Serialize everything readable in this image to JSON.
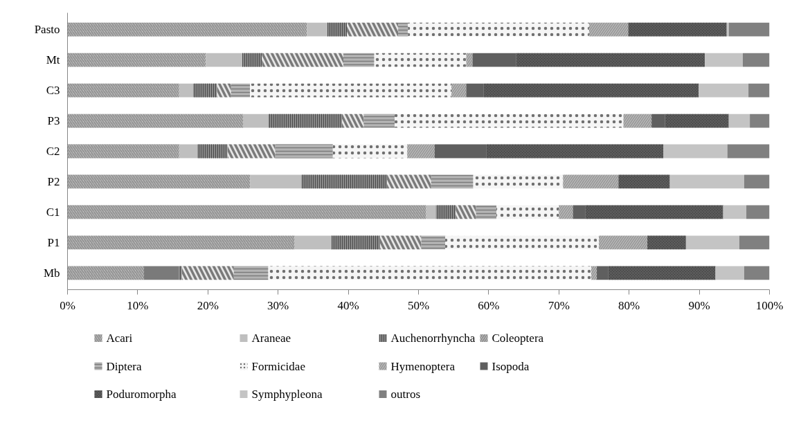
{
  "chart_data": {
    "type": "bar",
    "orientation": "horizontal",
    "stacked": true,
    "legend": "bottom",
    "categories": [
      "Pasto",
      "Mt",
      "C3",
      "P3",
      "C2",
      "P2",
      "C1",
      "P1",
      "Mb"
    ],
    "xlim": [
      0,
      100
    ],
    "xticks": [
      {
        "value": 0,
        "label": "0%"
      },
      {
        "value": 10,
        "label": "10%"
      },
      {
        "value": 20,
        "label": "20%"
      },
      {
        "value": 30,
        "label": "30%"
      },
      {
        "value": 40,
        "label": "40%"
      },
      {
        "value": 50,
        "label": "50%"
      },
      {
        "value": 60,
        "label": "60%"
      },
      {
        "value": 70,
        "label": "70%"
      },
      {
        "value": 80,
        "label": "80%"
      },
      {
        "value": 90,
        "label": "90%"
      },
      {
        "value": 100,
        "label": "100%"
      }
    ],
    "series": [
      {
        "name": "Acari",
        "color": "#c8c8c8",
        "values": [
          34.1,
          19.7,
          15.9,
          25.0,
          15.9,
          26.0,
          51.1,
          32.3,
          10.9
        ]
      },
      {
        "name": "Araneae",
        "color": "#bfbfbf",
        "colors": [
          "#bfbfbf",
          "#bfbfbf",
          "#bfbfbf",
          "#bfbfbf",
          "#bfbfbf",
          "#bfbfbf",
          "#bfbfbf",
          "#bfbfbf",
          "#7a7a7a"
        ],
        "values": [
          2.9,
          5.2,
          2.0,
          3.6,
          2.6,
          7.3,
          1.4,
          5.3,
          5.0
        ]
      },
      {
        "name": "Auchenorrhyncha",
        "color": "#8c8c8c",
        "values": [
          2.8,
          2.8,
          3.4,
          10.5,
          4.3,
          12.2,
          2.8,
          6.9,
          0.4
        ]
      },
      {
        "name": "Coleoptera",
        "color": "#e6e6e6",
        "values": [
          7.3,
          11.6,
          2.0,
          3.1,
          6.8,
          6.3,
          2.9,
          5.9,
          7.4
        ]
      },
      {
        "name": "Diptera",
        "color": "#b4b4b4",
        "values": [
          1.4,
          4.4,
          2.7,
          4.4,
          8.2,
          6.0,
          2.9,
          3.4,
          4.9
        ]
      },
      {
        "name": "Formicidae",
        "color": "#f5f5f5",
        "values": [
          25.8,
          13.1,
          28.7,
          32.6,
          10.6,
          12.8,
          8.9,
          21.9,
          46.0
        ]
      },
      {
        "name": "Hymenoptera",
        "color": "#d2d2d2",
        "values": [
          5.6,
          0.9,
          2.1,
          4.0,
          3.9,
          7.9,
          2.0,
          6.9,
          0.8
        ]
      },
      {
        "name": "Isopoda",
        "color": "#5f5f5f",
        "values": [
          0,
          6.2,
          2.5,
          1.9,
          7.4,
          0,
          1.8,
          0,
          1.6
        ]
      },
      {
        "name": "Poduromorpha",
        "color": "#4a4a4a",
        "values": [
          14.0,
          26.9,
          30.6,
          9.1,
          25.2,
          7.3,
          19.6,
          5.5,
          15.3
        ]
      },
      {
        "name": "Symphypleona",
        "color": "#c4c4c4",
        "values": [
          0.3,
          5.4,
          7.1,
          3.0,
          9.1,
          10.6,
          3.3,
          7.6,
          4.1
        ]
      },
      {
        "name": "outros",
        "color": "#808080",
        "values": [
          5.8,
          3.8,
          3.0,
          2.8,
          6.0,
          3.6,
          3.3,
          4.3,
          3.6
        ]
      }
    ]
  }
}
